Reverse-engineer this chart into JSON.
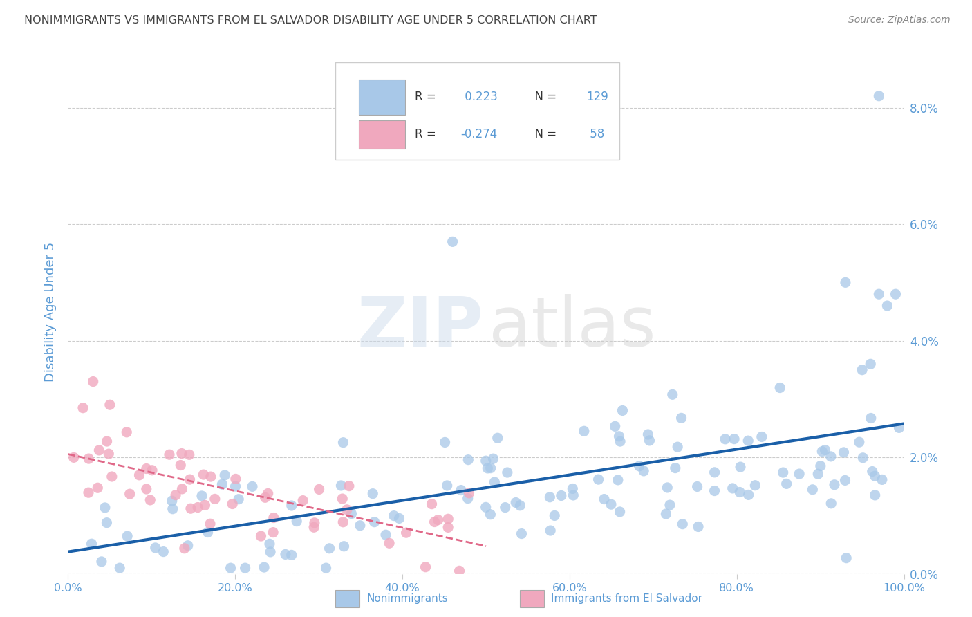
{
  "title": "NONIMMIGRANTS VS IMMIGRANTS FROM EL SALVADOR DISABILITY AGE UNDER 5 CORRELATION CHART",
  "source": "Source: ZipAtlas.com",
  "ylabel": "Disability Age Under 5",
  "blue_color": "#a8c8e8",
  "pink_color": "#f0a8be",
  "blue_line_color": "#1a5fa8",
  "pink_line_color": "#e06888",
  "axis_label_color": "#5b9bd5",
  "grid_color": "#cccccc",
  "title_color": "#444444",
  "source_color": "#888888",
  "legend_text_dark": "#333333",
  "legend_text_blue": "#5b9bd5",
  "xlim": [
    0,
    100
  ],
  "ylim": [
    0,
    9.0
  ],
  "yticks": [
    0,
    2,
    4,
    6,
    8
  ],
  "ytick_labels": [
    "0.0%",
    "2.0%",
    "4.0%",
    "6.0%",
    "8.0%"
  ],
  "xticks": [
    0,
    20,
    40,
    60,
    80,
    100
  ],
  "xtick_labels": [
    "0.0%",
    "20.0%",
    "40.0%",
    "60.0%",
    "80.0%",
    "100.0%"
  ],
  "R_blue": 0.223,
  "N_blue": 129,
  "R_pink": -0.274,
  "N_pink": 58,
  "watermark_zip_color": "#c8d8e8",
  "watermark_atlas_color": "#d0d0d0"
}
